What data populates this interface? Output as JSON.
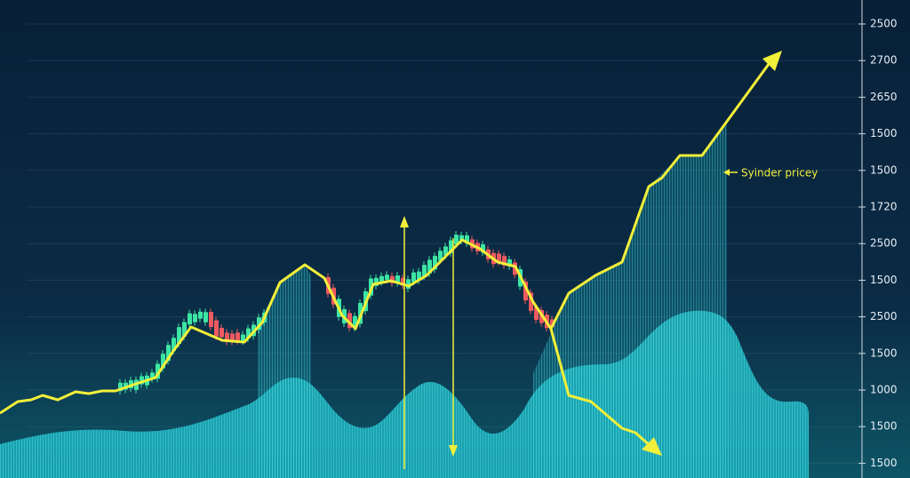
{
  "axis": {
    "labels": [
      "2500",
      "2700",
      "2650",
      "1500",
      "1500",
      "1720",
      "2500",
      "1500",
      "2500",
      "1500",
      "1000",
      "1500",
      "1500"
    ]
  },
  "annotation": "Syinder pricey"
}
